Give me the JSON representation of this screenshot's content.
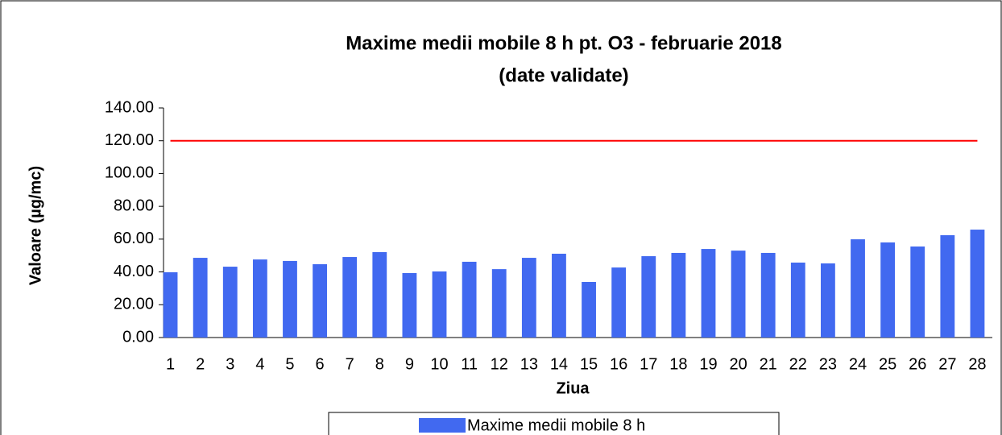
{
  "chart_data": {
    "type": "bar",
    "title": "Maxime medii mobile 8 h pt. O3 -  februarie 2018",
    "subtitle": "(date validate)",
    "x_label": "Ziua",
    "y_label": "Valoare (µg/mc)",
    "categories": [
      "1",
      "2",
      "3",
      "4",
      "5",
      "6",
      "7",
      "8",
      "9",
      "10",
      "11",
      "12",
      "13",
      "14",
      "15",
      "16",
      "17",
      "18",
      "19",
      "20",
      "21",
      "22",
      "23",
      "24",
      "25",
      "26",
      "27",
      "28"
    ],
    "series": [
      {
        "name": "Maxime medii mobile 8 h",
        "color": "#4169f0",
        "values": [
          39.8,
          48.6,
          43.2,
          47.6,
          46.7,
          44.7,
          49.1,
          52.1,
          39.3,
          40.3,
          46.2,
          41.7,
          48.6,
          51.1,
          33.9,
          42.7,
          49.6,
          51.6,
          54.0,
          53.0,
          51.6,
          45.7,
          45.2,
          59.9,
          58.0,
          55.5,
          62.4,
          65.8
        ]
      }
    ],
    "threshold_line": {
      "value": 120,
      "color": "#ff0000"
    },
    "ylim": [
      0,
      140
    ],
    "yticks": [
      {
        "value": 0,
        "label": "0.00"
      },
      {
        "value": 20,
        "label": "20.00"
      },
      {
        "value": 40,
        "label": "40.00"
      },
      {
        "value": 60,
        "label": "60.00"
      },
      {
        "value": 80,
        "label": "80.00"
      },
      {
        "value": 100,
        "label": "100.00"
      },
      {
        "value": 120,
        "label": "120.00"
      },
      {
        "value": 140,
        "label": "140.00"
      }
    ],
    "legend_position": "bottom"
  }
}
